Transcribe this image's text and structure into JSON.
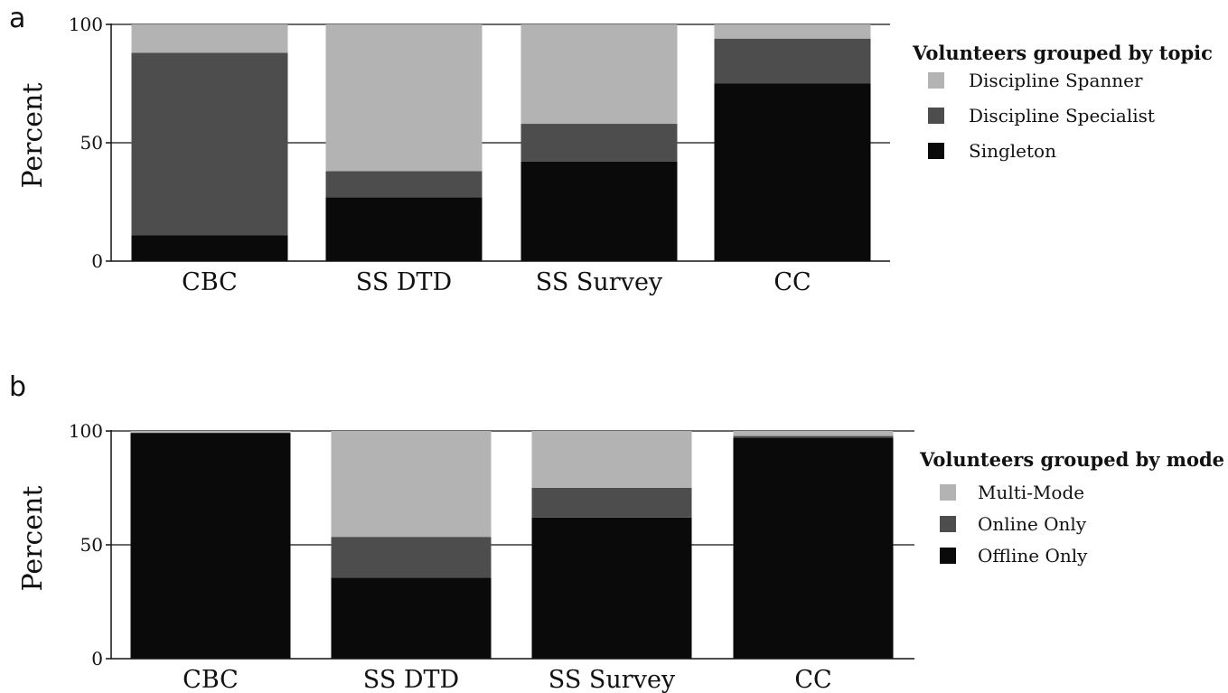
{
  "chart_data": [
    {
      "panel": "a",
      "type": "bar",
      "stacked": true,
      "categories": [
        "CBC",
        "SS DTD",
        "SS Survey",
        "CC"
      ],
      "series": [
        {
          "name": "Singleton",
          "color": "#0a0a0a",
          "values": [
            11,
            27,
            42,
            75
          ]
        },
        {
          "name": "Discipline Specialist",
          "color": "#4d4d4d",
          "values": [
            77,
            11,
            16,
            19
          ]
        },
        {
          "name": "Discipline Spanner",
          "color": "#b3b3b3",
          "values": [
            12,
            62,
            42,
            6
          ]
        }
      ],
      "legend_order": [
        "Discipline Spanner",
        "Discipline Specialist",
        "Singleton"
      ],
      "legend_title": "Volunteers grouped by topic",
      "ylabel": "Percent",
      "ylim": [
        0,
        100
      ],
      "yticks": [
        "0",
        "50",
        "100"
      ],
      "gridlines": [
        50,
        100
      ],
      "legend_position": "right"
    },
    {
      "panel": "b",
      "type": "bar",
      "stacked": true,
      "categories": [
        "CBC",
        "SS DTD",
        "SS Survey",
        "CC"
      ],
      "series": [
        {
          "name": "Offline Only",
          "color": "#0a0a0a",
          "values": [
            99,
            35.5,
            62,
            97
          ]
        },
        {
          "name": "Online Only",
          "color": "#4d4d4d",
          "values": [
            0.3,
            18,
            13,
            0.8
          ]
        },
        {
          "name": "Multi-Mode",
          "color": "#b3b3b3",
          "values": [
            0.7,
            46.5,
            25,
            2.2
          ]
        }
      ],
      "legend_order": [
        "Multi-Mode",
        "Online Only",
        "Offline Only"
      ],
      "legend_title": "Volunteers grouped by mode",
      "ylabel": "Percent",
      "ylim": [
        0,
        100
      ],
      "yticks": [
        "0",
        "50",
        "100"
      ],
      "gridlines": [
        50,
        100
      ],
      "legend_position": "right"
    }
  ]
}
